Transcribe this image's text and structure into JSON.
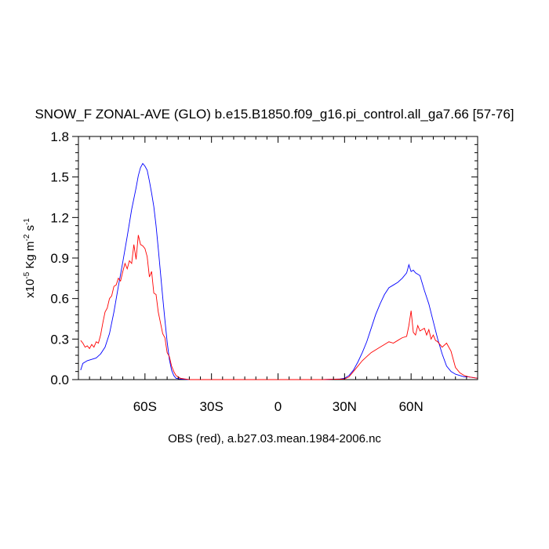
{
  "chart_data": {
    "type": "line",
    "title": "SNOW_F ZONAL-AVE (GLO) b.e15.B1850.f09_g16.pi_control.all_ga7.66 [57-76]",
    "ylabel_parts": {
      "base": "x10",
      "exp1": "-5",
      "mid": " Kg m",
      "exp2": "-2",
      "end": " s",
      "exp3": "-1"
    },
    "xlabel": "OBS (red), a.b27.03.mean.1984-2006.nc",
    "xlim": [
      -90,
      90
    ],
    "ylim": [
      0,
      1.8
    ],
    "xticks": [
      {
        "value": -60,
        "label": "60S"
      },
      {
        "value": -30,
        "label": "30S"
      },
      {
        "value": 0,
        "label": "0"
      },
      {
        "value": 30,
        "label": "30N"
      },
      {
        "value": 60,
        "label": "60N"
      }
    ],
    "yticks": [
      {
        "value": 0.0,
        "label": "0.0"
      },
      {
        "value": 0.3,
        "label": "0.3"
      },
      {
        "value": 0.6,
        "label": "0.6"
      },
      {
        "value": 0.9,
        "label": "0.9"
      },
      {
        "value": 1.2,
        "label": "1.2"
      },
      {
        "value": 1.5,
        "label": "1.5"
      },
      {
        "value": 1.8,
        "label": "1.8"
      }
    ],
    "series": [
      {
        "color": "#0000ff",
        "x": [
          -89,
          -88,
          -86,
          -84,
          -82,
          -80,
          -78,
          -76,
          -74,
          -72,
          -70,
          -68,
          -66,
          -64,
          -63,
          -62,
          -61,
          -60,
          -59,
          -58,
          -57,
          -56,
          -55,
          -54,
          -53,
          -52,
          -51,
          -50,
          -49,
          -48,
          -47,
          -46,
          -44,
          -40,
          0,
          20,
          28,
          30,
          32,
          34,
          36,
          38,
          40,
          42,
          44,
          46,
          48,
          50,
          52,
          54,
          56,
          58,
          59,
          60,
          61,
          62,
          64,
          66,
          68,
          70,
          72,
          74,
          76,
          78,
          80,
          82,
          84,
          86,
          88,
          90
        ],
        "y": [
          0.07,
          0.12,
          0.14,
          0.15,
          0.16,
          0.19,
          0.24,
          0.34,
          0.5,
          0.69,
          0.87,
          1.06,
          1.26,
          1.42,
          1.51,
          1.57,
          1.6,
          1.58,
          1.55,
          1.47,
          1.38,
          1.28,
          1.14,
          0.97,
          0.79,
          0.61,
          0.44,
          0.28,
          0.15,
          0.07,
          0.03,
          0.01,
          0.005,
          0.0,
          0.0,
          0.0,
          0.005,
          0.01,
          0.03,
          0.07,
          0.13,
          0.2,
          0.28,
          0.38,
          0.48,
          0.56,
          0.63,
          0.68,
          0.7,
          0.72,
          0.75,
          0.79,
          0.85,
          0.8,
          0.81,
          0.79,
          0.77,
          0.66,
          0.56,
          0.43,
          0.3,
          0.19,
          0.1,
          0.06,
          0.04,
          0.03,
          0.02,
          0.02,
          0.015,
          0.01
        ]
      },
      {
        "color": "#ff0000",
        "x": [
          -89,
          -88,
          -87,
          -86,
          -85,
          -84,
          -83,
          -82,
          -81,
          -80,
          -79,
          -78,
          -77,
          -76,
          -75,
          -74,
          -73,
          -72,
          -71,
          -70,
          -69,
          -68,
          -67,
          -66,
          -65,
          -64,
          -63,
          -62,
          -61,
          -60,
          -59,
          -58,
          -57,
          -56,
          -55,
          -54,
          -53,
          -52,
          -51,
          -50,
          -49,
          -48,
          -47,
          -46,
          -45,
          -44,
          -42,
          -40,
          20,
          30,
          32,
          34,
          36,
          38,
          40,
          42,
          44,
          46,
          48,
          50,
          52,
          54,
          56,
          58,
          59,
          60,
          61,
          62,
          63,
          64,
          65,
          66,
          67,
          68,
          69,
          70,
          71,
          72,
          74,
          76,
          78,
          80,
          82,
          84,
          86,
          88,
          90
        ],
        "y": [
          0.29,
          0.27,
          0.24,
          0.25,
          0.23,
          0.26,
          0.24,
          0.28,
          0.27,
          0.33,
          0.42,
          0.5,
          0.53,
          0.6,
          0.62,
          0.69,
          0.7,
          0.75,
          0.73,
          0.8,
          0.86,
          0.82,
          0.88,
          0.86,
          1.0,
          0.89,
          1.07,
          1.0,
          0.99,
          0.97,
          0.91,
          0.76,
          0.8,
          0.64,
          0.63,
          0.5,
          0.42,
          0.34,
          0.31,
          0.2,
          0.17,
          0.1,
          0.06,
          0.03,
          0.02,
          0.01,
          0.005,
          0.0,
          0.0,
          0.005,
          0.02,
          0.06,
          0.1,
          0.14,
          0.17,
          0.2,
          0.22,
          0.24,
          0.26,
          0.28,
          0.27,
          0.29,
          0.31,
          0.32,
          0.4,
          0.51,
          0.35,
          0.33,
          0.4,
          0.36,
          0.37,
          0.38,
          0.33,
          0.37,
          0.3,
          0.33,
          0.29,
          0.28,
          0.24,
          0.27,
          0.21,
          0.09,
          0.05,
          0.03,
          0.02,
          0.015,
          0.01
        ]
      }
    ],
    "grid": false,
    "legend": "none"
  }
}
